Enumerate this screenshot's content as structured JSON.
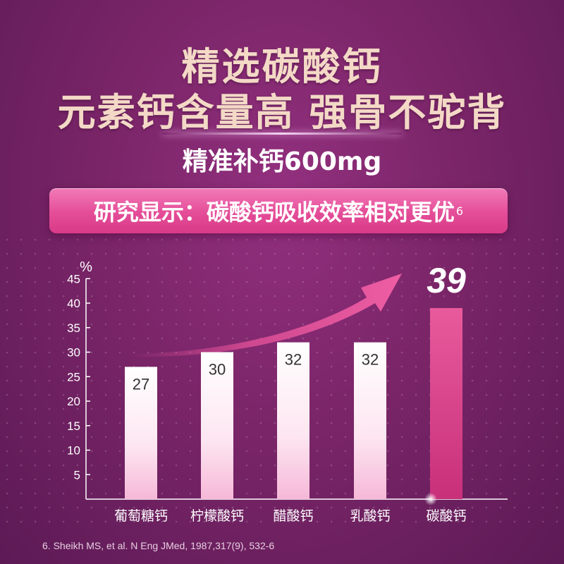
{
  "headline": {
    "line1": "精选碳酸钙",
    "line2": "元素钙含量高 强骨不驼背"
  },
  "subtitle": "精准补钙600mg",
  "banner": {
    "text": "研究显示：碳酸钙吸收效率相对更优",
    "superscript": "6"
  },
  "chart_data": {
    "type": "bar",
    "ylabel": "%",
    "ylim": [
      0,
      45
    ],
    "yticks": [
      5,
      10,
      15,
      20,
      25,
      30,
      35,
      40,
      45
    ],
    "categories": [
      "葡萄糖钙",
      "柠檬酸钙",
      "醋酸钙",
      "乳酸钙",
      "碳酸钙"
    ],
    "values": [
      27,
      30,
      32,
      32,
      39
    ],
    "data_labels": [
      "27",
      "30",
      "32",
      "32",
      "39"
    ],
    "highlight_index": 4,
    "colors": {
      "bar_top": "#ffffff",
      "bar_bottom": "#f6b8d8",
      "highlight_bar": "#e0488e",
      "arrow": "#e8539a",
      "axis": "#ffffff"
    }
  },
  "footnote": "6. Sheikh MS, et al. N Eng JMed, 1987,317(9), 532-6"
}
